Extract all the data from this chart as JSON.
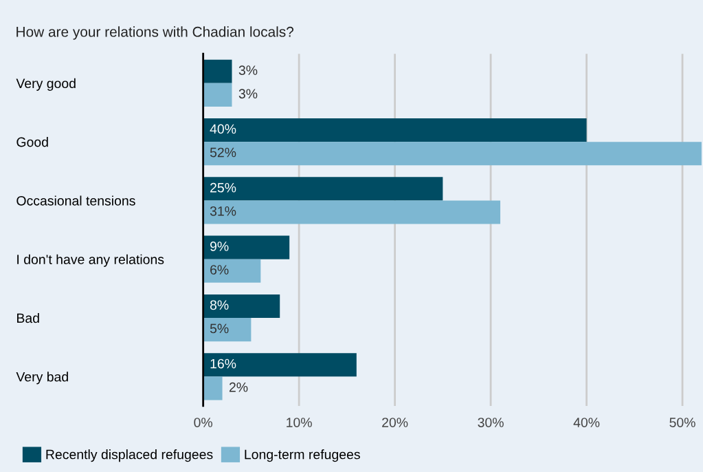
{
  "chart_data": {
    "type": "bar",
    "orientation": "horizontal",
    "title": "How are your relations with Chadian locals?",
    "categories": [
      "Very good",
      "Good",
      "Occasional tensions",
      "I don't have any relations",
      "Bad",
      "Very bad"
    ],
    "series": [
      {
        "name": "Recently displaced refugees",
        "color": "#004c63",
        "values": [
          3,
          40,
          25,
          9,
          8,
          16
        ],
        "value_labels": [
          "3%",
          "40%",
          "25%",
          "9%",
          "8%",
          "16%"
        ]
      },
      {
        "name": "Long-term refugees",
        "color": "#7db7d2",
        "values": [
          3,
          52,
          31,
          6,
          5,
          2
        ],
        "value_labels": [
          "3%",
          "52%",
          "31%",
          "6%",
          "5%",
          "2%"
        ]
      }
    ],
    "xlim": [
      0,
      52
    ],
    "xticks": [
      {
        "value": 0,
        "label": "0%"
      },
      {
        "value": 10,
        "label": "10%"
      },
      {
        "value": 20,
        "label": "20%"
      },
      {
        "value": 30,
        "label": "30%"
      },
      {
        "value": 40,
        "label": "40%"
      },
      {
        "value": 50,
        "label": "50%"
      }
    ],
    "grid": "x",
    "legend": "bottom left"
  }
}
